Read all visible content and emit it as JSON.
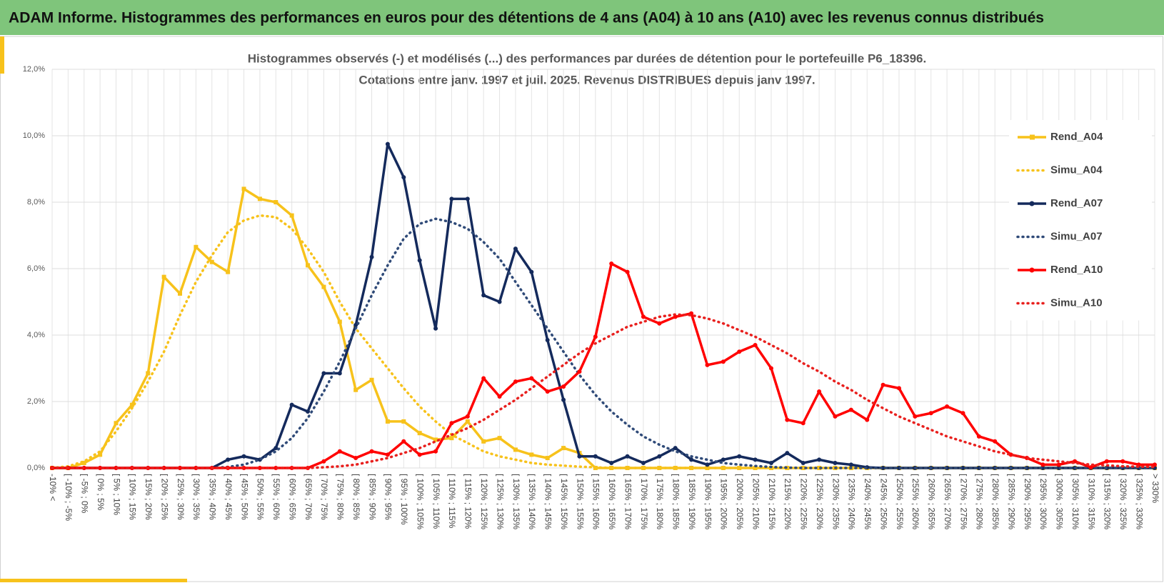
{
  "header": {
    "title": "ADAM Informe. Histogrammes des performances en euros pour des détentions de 4 ans (A04) à 10 ans (A10) avec les revenus connus distribués"
  },
  "chart_data": {
    "type": "line",
    "title": "Histogrammes observés (-) et modélisés (...) des performances par durées de détention pour le portefeuille P6_18396.",
    "subtitle": "Cotations entre janv. 1997 et juil. 2025. Revenus DISTRIBUES depuis janv 1997.",
    "categories": [
      "-10% <",
      "[ -10% ; -5%",
      "[ -5% ; 0%",
      "[ 0% ; 5%",
      "[ 5% ; 10%",
      "[ 10% ; 15%",
      "[ 15% ; 20%",
      "[ 20% ; 25%",
      "[ 25% ; 30%",
      "[ 30% ; 35%",
      "[ 35% ; 40%",
      "[ 40% ; 45%",
      "[ 45% ; 50%",
      "[ 50% ; 55%",
      "[ 55% ; 60%",
      "[ 60% ; 65%",
      "[ 65% ; 70%",
      "[ 70% ; 75%",
      "[ 75% ; 80%",
      "[ 80% ; 85%",
      "[ 85% ; 90%",
      "[ 90% ; 95%",
      "[ 95% ; 100%",
      "[ 100% ; 105%",
      "[ 105% ; 110%",
      "[ 110% ; 115%",
      "[ 115% ; 120%",
      "[ 120% ; 125%",
      "[ 125% ; 130%",
      "[ 130% ; 135%",
      "[ 135% ; 140%",
      "[ 140% ; 145%",
      "[ 145% ; 150%",
      "[ 150% ; 155%",
      "[ 155% ; 160%",
      "[ 160% ; 165%",
      "[ 165% ; 170%",
      "[ 170% ; 175%",
      "[ 175% ; 180%",
      "[ 180% ; 185%",
      "[ 185% ; 190%",
      "[ 190% ; 195%",
      "[ 195% ; 200%",
      "[ 200% ; 205%",
      "[ 205% ; 210%",
      "[ 210% ; 215%",
      "[ 215% ; 220%",
      "[ 220% ; 225%",
      "[ 225% ; 230%",
      "[ 230% ; 235%",
      "[ 235% ; 240%",
      "[ 240% ; 245%",
      "[ 245% ; 250%",
      "[ 250% ; 255%",
      "[ 255% ; 260%",
      "[ 260% ; 265%",
      "[ 265% ; 270%",
      "[ 270% ; 275%",
      "[ 275% ; 280%",
      "[ 280% ; 285%",
      "[ 285% ; 290%",
      "[ 290% ; 295%",
      "[ 295% ; 300%",
      "[ 300% ; 305%",
      "[ 305% ; 310%",
      "[ 310% ; 315%",
      "[ 315% ; 320%",
      "[ 320% ; 325%",
      "[ 325% ; 330%",
      "> 330%"
    ],
    "series": [
      {
        "name": "Rend_A04",
        "color": "#f7c21b",
        "style": "solid",
        "marker": "square",
        "values": [
          0,
          0,
          0.15,
          0.4,
          1.35,
          1.9,
          2.85,
          5.75,
          5.25,
          6.65,
          6.2,
          5.9,
          8.4,
          8.1,
          8.0,
          7.6,
          6.1,
          5.45,
          4.4,
          2.35,
          2.65,
          1.4,
          1.4,
          1.05,
          0.85,
          0.9,
          1.4,
          0.8,
          0.9,
          0.55,
          0.4,
          0.3,
          0.6,
          0.45,
          0,
          0,
          0,
          0,
          0,
          0,
          0,
          0,
          0,
          0,
          0,
          0,
          0,
          0,
          0,
          0,
          0,
          0,
          0,
          0,
          0,
          0,
          0,
          0,
          0,
          0,
          0,
          0,
          0,
          0,
          0,
          0,
          0,
          0,
          0,
          0
        ]
      },
      {
        "name": "Simu_A04",
        "color": "#f7c21b",
        "style": "dotted",
        "marker": null,
        "values": [
          0,
          0.05,
          0.2,
          0.5,
          1.1,
          1.8,
          2.6,
          3.5,
          4.6,
          5.6,
          6.4,
          7.1,
          7.45,
          7.6,
          7.55,
          7.2,
          6.6,
          5.9,
          5.0,
          4.2,
          3.6,
          3.0,
          2.4,
          1.85,
          1.4,
          1.0,
          0.75,
          0.5,
          0.35,
          0.25,
          0.15,
          0.1,
          0.07,
          0.04,
          0.02,
          0,
          0,
          0,
          0,
          0,
          0,
          0,
          0,
          0,
          0,
          0,
          0,
          0,
          0,
          0,
          0,
          0,
          0,
          0,
          0,
          0,
          0,
          0,
          0,
          0,
          0,
          0,
          0,
          0,
          0,
          0,
          0,
          0,
          0,
          0
        ]
      },
      {
        "name": "Rend_A07",
        "color": "#142a5c",
        "style": "solid",
        "marker": "circle",
        "values": [
          0,
          0,
          0,
          0,
          0,
          0,
          0,
          0,
          0,
          0,
          0,
          0.25,
          0.35,
          0.25,
          0.6,
          1.9,
          1.7,
          2.85,
          2.85,
          4.3,
          6.35,
          9.75,
          8.75,
          6.25,
          4.2,
          8.1,
          8.1,
          5.2,
          5.0,
          6.6,
          5.9,
          3.85,
          2.05,
          0.35,
          0.35,
          0.15,
          0.35,
          0.15,
          0.35,
          0.6,
          0.25,
          0.1,
          0.25,
          0.35,
          0.25,
          0.15,
          0.45,
          0.15,
          0.25,
          0.15,
          0.1,
          0.02,
          0,
          0,
          0,
          0,
          0,
          0,
          0,
          0,
          0,
          0,
          0,
          0,
          0,
          0,
          0,
          0,
          0,
          0
        ]
      },
      {
        "name": "Simu_A07",
        "color": "#2f4a78",
        "style": "dotted",
        "marker": null,
        "values": [
          0,
          0,
          0,
          0,
          0,
          0,
          0,
          0,
          0,
          0,
          0,
          0.03,
          0.1,
          0.25,
          0.5,
          0.9,
          1.5,
          2.3,
          3.2,
          4.2,
          5.2,
          6.1,
          6.9,
          7.35,
          7.5,
          7.4,
          7.2,
          6.8,
          6.3,
          5.6,
          4.9,
          4.2,
          3.5,
          2.8,
          2.2,
          1.7,
          1.3,
          0.95,
          0.7,
          0.5,
          0.35,
          0.25,
          0.15,
          0.1,
          0.06,
          0.03,
          0.01,
          0,
          0,
          0,
          0,
          0,
          0,
          0,
          0,
          0,
          0,
          0,
          0,
          0,
          0,
          0,
          0,
          0,
          0,
          0,
          0,
          0,
          0,
          0
        ]
      },
      {
        "name": "Rend_A10",
        "color": "#ff0000",
        "style": "solid",
        "marker": "circle",
        "values": [
          0,
          0,
          0,
          0,
          0,
          0,
          0,
          0,
          0,
          0,
          0,
          0,
          0,
          0,
          0,
          0,
          0,
          0.2,
          0.5,
          0.3,
          0.5,
          0.4,
          0.8,
          0.4,
          0.5,
          1.35,
          1.55,
          2.7,
          2.15,
          2.6,
          2.7,
          2.3,
          2.45,
          2.9,
          3.95,
          6.15,
          5.9,
          4.55,
          4.35,
          4.55,
          4.65,
          3.1,
          3.2,
          3.5,
          3.7,
          3.0,
          1.45,
          1.35,
          2.3,
          1.55,
          1.75,
          1.45,
          2.5,
          2.4,
          1.55,
          1.65,
          1.85,
          1.65,
          0.95,
          0.8,
          0.4,
          0.3,
          0.1,
          0.1,
          0.2,
          0.02,
          0.2,
          0.2,
          0.1,
          0.1
        ]
      },
      {
        "name": "Simu_A10",
        "color": "#e8201e",
        "style": "dotted",
        "marker": null,
        "values": [
          0,
          0,
          0,
          0,
          0,
          0,
          0,
          0,
          0,
          0,
          0,
          0,
          0,
          0,
          0,
          0,
          0,
          0.02,
          0.05,
          0.1,
          0.2,
          0.3,
          0.45,
          0.6,
          0.8,
          1.0,
          1.2,
          1.45,
          1.75,
          2.05,
          2.4,
          2.75,
          3.1,
          3.45,
          3.75,
          4.0,
          4.25,
          4.4,
          4.55,
          4.62,
          4.6,
          4.5,
          4.35,
          4.15,
          3.95,
          3.7,
          3.45,
          3.15,
          2.9,
          2.6,
          2.35,
          2.05,
          1.8,
          1.55,
          1.35,
          1.15,
          0.95,
          0.8,
          0.65,
          0.5,
          0.4,
          0.3,
          0.25,
          0.2,
          0.15,
          0.1,
          0.08,
          0.05,
          0.04,
          0.03
        ]
      }
    ],
    "ylim": [
      0,
      12
    ],
    "yticks": [
      {
        "value": 0,
        "label": "0,0%"
      },
      {
        "value": 2,
        "label": "2,0%"
      },
      {
        "value": 4,
        "label": "4,0%"
      },
      {
        "value": 6,
        "label": "6,0%"
      },
      {
        "value": 8,
        "label": "8,0%"
      },
      {
        "value": 10,
        "label": "10,0%"
      },
      {
        "value": 12,
        "label": "12,0%"
      }
    ],
    "grid": true,
    "legend": "right"
  }
}
